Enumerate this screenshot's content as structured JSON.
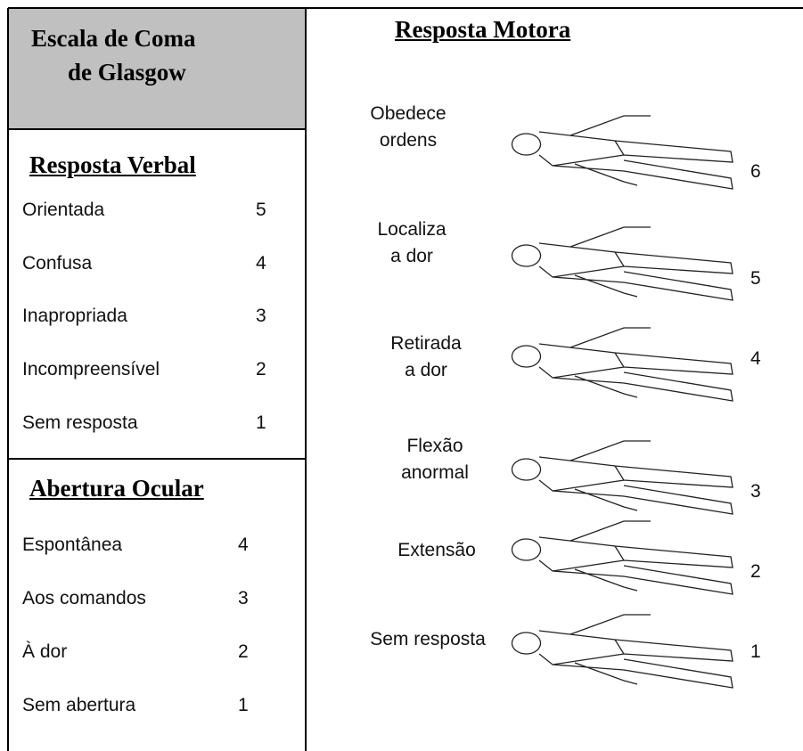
{
  "title": [
    "Escala de Coma",
    "de Glasgow"
  ],
  "verbal": {
    "heading": "Resposta Verbal",
    "items": [
      {
        "label": "Orientada",
        "score": 5
      },
      {
        "label": "Confusa",
        "score": 4
      },
      {
        "label": "Inapropriada",
        "score": 3
      },
      {
        "label": "Incompreensível",
        "score": 2
      },
      {
        "label": "Sem resposta",
        "score": 1
      }
    ]
  },
  "ocular": {
    "heading": "Abertura Ocular",
    "items": [
      {
        "label": "Espontânea",
        "score": 4
      },
      {
        "label": "Aos comandos",
        "score": 3
      },
      {
        "label": "À dor",
        "score": 2
      },
      {
        "label": "Sem abertura",
        "score": 1
      }
    ]
  },
  "motor": {
    "heading": "Resposta Motora",
    "items": [
      {
        "label": [
          "Obedece",
          "ordens"
        ],
        "score": 6
      },
      {
        "label": [
          "Localiza",
          "a dor"
        ],
        "score": 5
      },
      {
        "label": [
          "Retirada",
          "a dor"
        ],
        "score": 4
      },
      {
        "label": [
          "Flexão",
          "anormal"
        ],
        "score": 3
      },
      {
        "label": [
          "Extensão"
        ],
        "score": 2
      },
      {
        "label": [
          "Sem resposta"
        ],
        "score": 1
      }
    ]
  }
}
